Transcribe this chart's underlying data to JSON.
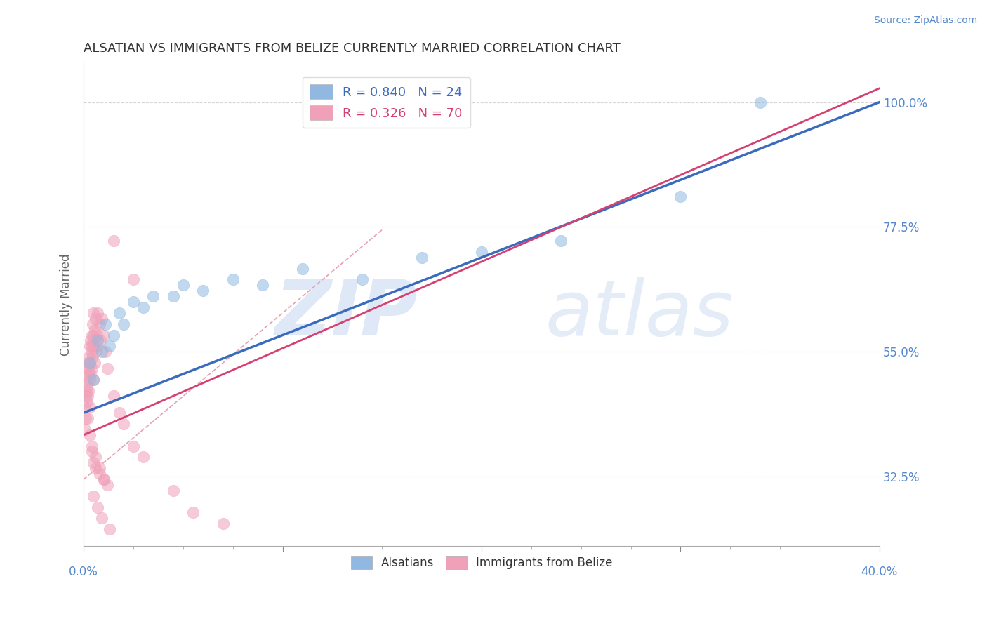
{
  "title": "ALSATIAN VS IMMIGRANTS FROM BELIZE CURRENTLY MARRIED CORRELATION CHART",
  "source": "Source: ZipAtlas.com",
  "ylabel": "Currently Married",
  "xlim": [
    0.0,
    40.0
  ],
  "ylim": [
    20.0,
    107.0
  ],
  "yticks": [
    32.5,
    55.0,
    77.5,
    100.0
  ],
  "blue_R": 0.84,
  "blue_N": 24,
  "pink_R": 0.326,
  "pink_N": 70,
  "blue_color": "#90b8e0",
  "pink_color": "#f0a0b8",
  "blue_line_color": "#3a6bbf",
  "pink_line_color": "#d64070",
  "dash_line_color": "#e8a0b0",
  "legend_blue_label": "Alsatians",
  "legend_pink_label": "Immigrants from Belize",
  "blue_points_x": [
    0.3,
    0.5,
    0.7,
    0.9,
    1.1,
    1.3,
    1.5,
    1.8,
    2.0,
    2.5,
    3.0,
    3.5,
    4.5,
    5.0,
    6.0,
    7.5,
    9.0,
    11.0,
    14.0,
    17.0,
    20.0,
    24.0,
    30.0,
    34.0
  ],
  "blue_points_y": [
    53.0,
    50.0,
    57.0,
    55.0,
    60.0,
    56.0,
    58.0,
    62.0,
    60.0,
    64.0,
    63.0,
    65.0,
    65.0,
    67.0,
    66.0,
    68.0,
    67.0,
    70.0,
    68.0,
    72.0,
    73.0,
    75.0,
    83.0,
    100.0
  ],
  "pink_points_x": [
    0.05,
    0.05,
    0.08,
    0.1,
    0.1,
    0.12,
    0.15,
    0.15,
    0.18,
    0.2,
    0.2,
    0.2,
    0.22,
    0.25,
    0.25,
    0.28,
    0.3,
    0.3,
    0.3,
    0.32,
    0.35,
    0.35,
    0.38,
    0.4,
    0.4,
    0.42,
    0.45,
    0.45,
    0.48,
    0.5,
    0.5,
    0.5,
    0.55,
    0.55,
    0.6,
    0.6,
    0.65,
    0.7,
    0.7,
    0.8,
    0.85,
    0.9,
    1.0,
    1.1,
    1.2,
    1.5,
    1.8,
    2.0,
    2.5,
    3.0,
    4.5,
    5.5,
    7.0,
    1.5,
    2.5,
    0.4,
    0.5,
    0.6,
    0.8,
    1.0,
    1.2,
    0.3,
    0.4,
    0.6,
    0.8,
    1.0,
    0.5,
    0.7,
    0.9,
    1.3
  ],
  "pink_points_y": [
    45.0,
    41.0,
    47.0,
    50.0,
    43.0,
    48.0,
    52.0,
    46.0,
    49.0,
    53.0,
    47.0,
    43.0,
    51.0,
    54.0,
    48.0,
    52.0,
    56.0,
    50.0,
    45.0,
    53.0,
    57.0,
    51.0,
    55.0,
    58.0,
    52.0,
    56.0,
    60.0,
    54.0,
    58.0,
    62.0,
    56.0,
    50.0,
    59.0,
    53.0,
    61.0,
    55.0,
    58.0,
    62.0,
    56.0,
    60.0,
    57.0,
    61.0,
    58.0,
    55.0,
    52.0,
    47.0,
    44.0,
    42.0,
    38.0,
    36.0,
    30.0,
    26.0,
    24.0,
    75.0,
    68.0,
    37.0,
    35.0,
    34.0,
    33.0,
    32.0,
    31.0,
    40.0,
    38.0,
    36.0,
    34.0,
    32.0,
    29.0,
    27.0,
    25.0,
    23.0
  ],
  "watermark_zip": "ZIP",
  "watermark_atlas": "atlas",
  "background_color": "#ffffff",
  "grid_color": "#cccccc",
  "tick_color": "#5588cc"
}
